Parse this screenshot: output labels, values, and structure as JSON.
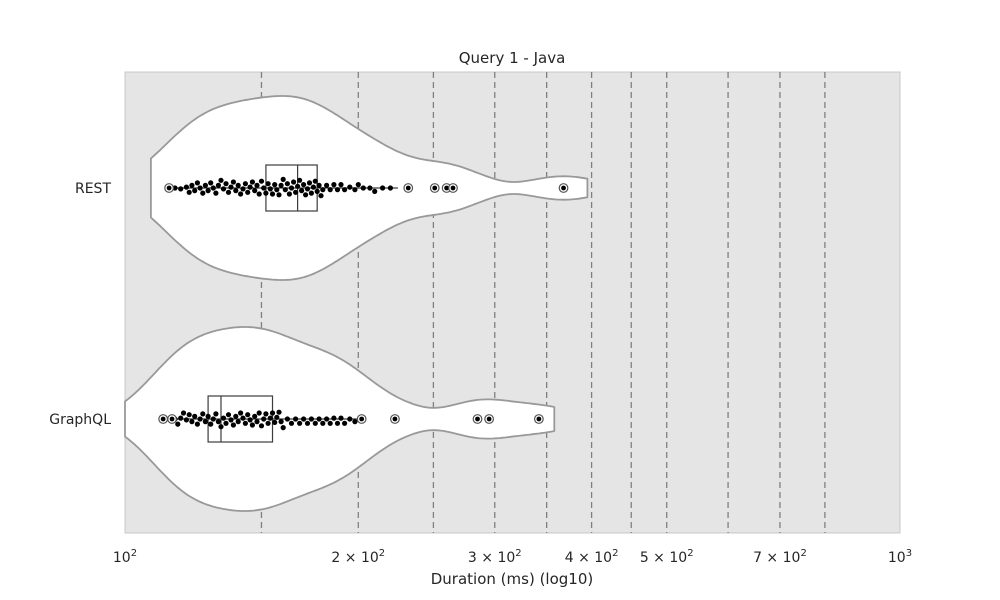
{
  "chart_data": {
    "type": "violin",
    "title": "Query 1 - Java",
    "xlabel": "Duration (ms) (log10)",
    "ylabel": "",
    "x_scale": "log",
    "xlim": [
      100,
      1000
    ],
    "categories": [
      "REST",
      "GraphQL"
    ],
    "x_ticks": [
      {
        "value": 100,
        "base": "10",
        "exp": "2",
        "coef": ""
      },
      {
        "value": 200,
        "base": "10",
        "exp": "2",
        "coef": "2"
      },
      {
        "value": 300,
        "base": "10",
        "exp": "2",
        "coef": "3"
      },
      {
        "value": 400,
        "base": "10",
        "exp": "2",
        "coef": "4"
      },
      {
        "value": 500,
        "base": "10",
        "exp": "2",
        "coef": "5"
      },
      {
        "value": 700,
        "base": "10",
        "exp": "2",
        "coef": "7"
      },
      {
        "value": 1000,
        "base": "10",
        "exp": "3",
        "coef": ""
      }
    ],
    "vlines": [
      150,
      200,
      250,
      300,
      350,
      400,
      450,
      500,
      600,
      700,
      800
    ],
    "grid": false,
    "colors": {
      "plot_bg": "#e5e5e5",
      "violin_fill": "#ffffff",
      "violin_edge": "#999999",
      "vline": "#808080",
      "point": "#000000",
      "outlier_edge": "#555555"
    },
    "series": [
      {
        "name": "REST",
        "whisker": [
          114,
          225
        ],
        "box": {
          "q1": 152,
          "median": 167,
          "q3": 177
        },
        "points": [
          116,
          118,
          120,
          121,
          122,
          123,
          124,
          125,
          126,
          127,
          128,
          129,
          130,
          131,
          132,
          133,
          134,
          135,
          136,
          137,
          138,
          139,
          140,
          141,
          142,
          143,
          144,
          145,
          146,
          147,
          148,
          149,
          150,
          151,
          152,
          153,
          154,
          155,
          156,
          157,
          158,
          159,
          160,
          161,
          162,
          163,
          164,
          165,
          166,
          167,
          168,
          169,
          170,
          171,
          172,
          173,
          174,
          175,
          176,
          177,
          178,
          179,
          180,
          182,
          184,
          186,
          188,
          190,
          192,
          195,
          198,
          200,
          203,
          207,
          210,
          215,
          220
        ],
        "outliers": [
          114,
          232,
          251,
          260,
          265,
          368
        ]
      },
      {
        "name": "GraphQL",
        "whisker": [
          112,
          200
        ],
        "box": {
          "q1": 128,
          "median": 133,
          "q3": 155
        },
        "points": [
          114,
          116,
          117,
          118,
          119,
          120,
          121,
          122,
          123,
          124,
          125,
          126,
          127,
          128,
          129,
          130,
          131,
          132,
          133,
          134,
          135,
          136,
          137,
          138,
          139,
          140,
          141,
          142,
          143,
          144,
          145,
          146,
          147,
          148,
          149,
          150,
          151,
          152,
          153,
          154,
          155,
          156,
          157,
          158,
          159,
          160,
          162,
          164,
          166,
          168,
          170,
          172,
          174,
          176,
          178,
          180,
          182,
          184,
          186,
          188,
          190,
          192,
          195,
          198
        ],
        "outliers": [
          112,
          115,
          202,
          223,
          285,
          295,
          342
        ]
      }
    ]
  }
}
